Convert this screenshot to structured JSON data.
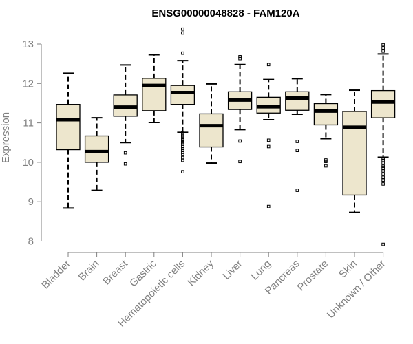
{
  "chart_data": {
    "type": "boxplot",
    "title": "ENSG00000048828 - FAM120A",
    "xlabel": "",
    "ylabel": "Expression",
    "ylim": [
      7.75,
      13.45
    ],
    "yticks": [
      8,
      9,
      10,
      11,
      12,
      13
    ],
    "grid": false,
    "legend": "none",
    "colors": {
      "box_fill": "#EDE6CD",
      "stroke": "#000000",
      "axis": "#808080"
    },
    "categories": [
      "Bladder",
      "Brain",
      "Breast",
      "Gastric",
      "Hematopoietic cells",
      "Kidney",
      "Liver",
      "Lung",
      "Pancreas",
      "Prostate",
      "Skin",
      "Unknown / Other"
    ],
    "boxes": [
      {
        "category": "Bladder",
        "whisker_low": 8.84,
        "q1": 10.32,
        "median": 11.08,
        "q3": 11.47,
        "whisker_high": 12.26,
        "outliers": []
      },
      {
        "category": "Brain",
        "whisker_low": 9.29,
        "q1": 10.0,
        "median": 10.27,
        "q3": 10.67,
        "whisker_high": 11.13,
        "outliers": []
      },
      {
        "category": "Breast",
        "whisker_low": 10.5,
        "q1": 11.17,
        "median": 11.4,
        "q3": 11.71,
        "whisker_high": 12.47,
        "outliers": [
          10.24,
          9.96
        ]
      },
      {
        "category": "Gastric",
        "whisker_low": 11.01,
        "q1": 11.31,
        "median": 11.95,
        "q3": 12.13,
        "whisker_high": 12.73,
        "outliers": []
      },
      {
        "category": "Hematopoietic cells",
        "whisker_low": 10.76,
        "q1": 11.47,
        "median": 11.77,
        "q3": 11.95,
        "whisker_high": 12.58,
        "outliers": [
          13.38,
          13.28,
          12.77,
          10.76,
          10.71,
          10.67,
          10.63,
          10.58,
          10.54,
          10.5,
          10.46,
          10.4,
          10.35,
          10.3,
          10.25,
          10.2,
          10.12,
          10.05,
          9.76
        ]
      },
      {
        "category": "Kidney",
        "whisker_low": 9.98,
        "q1": 10.39,
        "median": 10.93,
        "q3": 11.23,
        "whisker_high": 11.99,
        "outliers": []
      },
      {
        "category": "Liver",
        "whisker_low": 10.83,
        "q1": 11.34,
        "median": 11.58,
        "q3": 11.79,
        "whisker_high": 12.48,
        "outliers": [
          12.68,
          12.63,
          10.54,
          10.02
        ]
      },
      {
        "category": "Lung",
        "whisker_low": 11.08,
        "q1": 11.25,
        "median": 11.41,
        "q3": 11.65,
        "whisker_high": 12.1,
        "outliers": [
          12.48,
          10.56,
          10.4,
          8.88
        ]
      },
      {
        "category": "Pancreas",
        "whisker_low": 11.22,
        "q1": 11.32,
        "median": 11.63,
        "q3": 11.79,
        "whisker_high": 12.12,
        "outliers": [
          10.53,
          10.3,
          9.29
        ]
      },
      {
        "category": "Prostate",
        "whisker_low": 10.6,
        "q1": 10.95,
        "median": 11.3,
        "q3": 11.49,
        "whisker_high": 11.72,
        "outliers": [
          10.06,
          10.02,
          9.91
        ]
      },
      {
        "category": "Skin",
        "whisker_low": 8.73,
        "q1": 9.17,
        "median": 10.89,
        "q3": 11.29,
        "whisker_high": 11.83,
        "outliers": []
      },
      {
        "category": "Unknown / Other",
        "whisker_low": 10.13,
        "q1": 11.13,
        "median": 11.53,
        "q3": 11.82,
        "whisker_high": 12.75,
        "outliers": [
          12.98,
          12.9,
          12.82,
          10.1,
          10.05,
          9.98,
          9.9,
          9.85,
          9.78,
          9.7,
          9.62,
          9.55,
          9.45,
          7.92
        ]
      }
    ]
  }
}
